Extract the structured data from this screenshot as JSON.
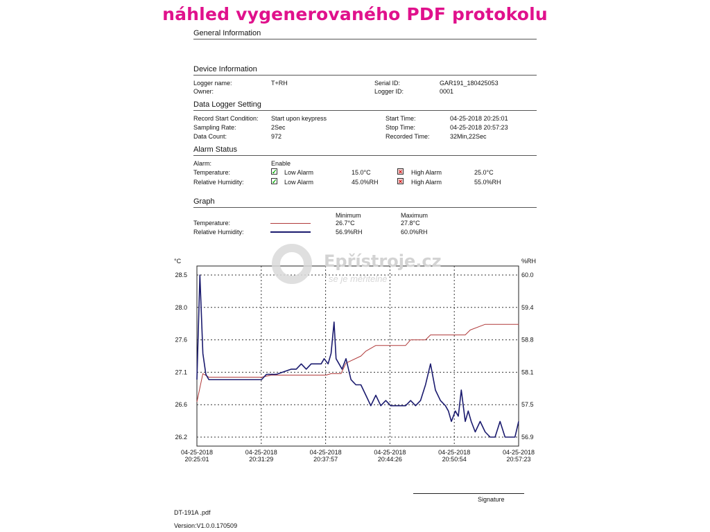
{
  "banner": "náhled vygenerovaného PDF protokolu",
  "sections": {
    "general": "General Information",
    "device": "Device Information",
    "logger_setting": "Data Logger Setting",
    "alarm": "Alarm Status",
    "graph": "Graph"
  },
  "device": {
    "logger_name_label": "Logger name:",
    "logger_name": "T+RH",
    "owner_label": "Owner:",
    "serial_label": "Serial ID:",
    "serial": "GAR191_180425053",
    "logger_id_label": "Logger ID:",
    "logger_id": "0001"
  },
  "setting": {
    "start_cond_label": "Record Start Condition:",
    "start_cond": "Start upon keypress",
    "rate_label": "Sampling Rate:",
    "rate": "2Sec",
    "count_label": "Data Count:",
    "count": "972",
    "start_time_label": "Start Time:",
    "start_time": "04-25-2018 20:25:01",
    "stop_time_label": "Stop Time:",
    "stop_time": "04-25-2018 20:57:23",
    "recorded_label": "Recorded Time:",
    "recorded": "32Min,22Sec"
  },
  "alarm": {
    "alarm_label": "Alarm:",
    "alarm_value": "Enable",
    "temp_label": "Temperature:",
    "rh_label": "Relative Humidity:",
    "low_label": "Low Alarm",
    "high_label": "High Alarm",
    "temp_low": "15.0°C",
    "temp_high": "25.0°C",
    "rh_low": "45.0%RH",
    "rh_high": "55.0%RH"
  },
  "legend": {
    "min_header": "Minimum",
    "max_header": "Maximum",
    "temp_label": "Temperature:",
    "rh_label": "Relative Humidity:",
    "temp_min": "26.7°C",
    "temp_max": "27.8°C",
    "rh_min": "56.9%RH",
    "rh_max": "60.0%RH",
    "temp_color": "#b03a3a",
    "rh_color": "#1a1a6e"
  },
  "watermark": {
    "brand": "Epřístroje.cz",
    "tagline": "se je měřitelné"
  },
  "signature_label": "Signature",
  "footer": {
    "file": "DT-191A .pdf",
    "version": "Version:V1.0.0.170509"
  },
  "chart_data": {
    "type": "line",
    "y_left_unit": "°C",
    "y_right_unit": "%RH",
    "y_left_ticks": [
      "28.5",
      "28.0",
      "27.6",
      "27.1",
      "26.6",
      "26.2"
    ],
    "y_right_ticks": [
      "60.0",
      "59.4",
      "58.8",
      "58.1",
      "57.5",
      "56.9"
    ],
    "ylim_left": [
      26.2,
      28.5
    ],
    "ylim_right": [
      56.9,
      60.0
    ],
    "x_ticks": [
      {
        "date": "04-25-2018",
        "time": "20:25:01"
      },
      {
        "date": "04-25-2018",
        "time": "20:31:29"
      },
      {
        "date": "04-25-2018",
        "time": "20:37:57"
      },
      {
        "date": "04-25-2018",
        "time": "20:44:26"
      },
      {
        "date": "04-25-2018",
        "time": "20:50:54"
      },
      {
        "date": "04-25-2018",
        "time": "20:57:23"
      }
    ],
    "xlim_min": [
      0,
      32.37
    ],
    "grid": true,
    "series": [
      {
        "name": "Temperature",
        "axis": "left",
        "color": "#b03a3a",
        "x_min": [
          0,
          0.6,
          1.2,
          3.5,
          6.5,
          7.5,
          13.0,
          13.5,
          14.5,
          15.0,
          16.5,
          17.0,
          18.0,
          19.5,
          21.0,
          21.5,
          23.0,
          23.5,
          27.0,
          27.5,
          29.0,
          32.4
        ],
        "y": [
          26.7,
          27.1,
          27.05,
          27.05,
          27.05,
          27.08,
          27.08,
          27.1,
          27.1,
          27.25,
          27.35,
          27.42,
          27.5,
          27.5,
          27.5,
          27.58,
          27.58,
          27.65,
          27.65,
          27.72,
          27.8,
          27.8
        ]
      },
      {
        "name": "Relative Humidity",
        "axis": "right",
        "color": "#1a1a6e",
        "x_min": [
          0,
          0.3,
          0.6,
          0.9,
          1.2,
          2.0,
          3.0,
          4.0,
          5.0,
          6.5,
          7.0,
          7.5,
          8.0,
          9.5,
          10.0,
          10.5,
          11.0,
          11.5,
          12.0,
          12.5,
          12.8,
          13.2,
          13.5,
          13.8,
          14.0,
          14.3,
          14.6,
          15.0,
          15.5,
          16.0,
          16.5,
          17.0,
          17.5,
          18.0,
          18.5,
          19.0,
          19.5,
          20.0,
          21.0,
          21.5,
          22.0,
          22.5,
          23.0,
          23.5,
          24.0,
          24.5,
          25.0,
          25.3,
          25.6,
          26.0,
          26.3,
          26.6,
          27.0,
          27.3,
          27.6,
          28.0,
          28.5,
          29.0,
          29.5,
          30.0,
          30.5,
          31.0,
          31.5,
          32.0,
          32.37
        ],
        "y": [
          58.0,
          60.0,
          58.5,
          58.1,
          58.0,
          58.0,
          58.0,
          58.0,
          58.0,
          58.0,
          58.1,
          58.1,
          58.1,
          58.2,
          58.2,
          58.3,
          58.2,
          58.3,
          58.3,
          58.3,
          58.4,
          58.3,
          58.5,
          59.1,
          58.4,
          58.3,
          58.2,
          58.4,
          58.0,
          57.9,
          57.9,
          57.7,
          57.5,
          57.7,
          57.5,
          57.6,
          57.5,
          57.5,
          57.5,
          57.6,
          57.5,
          57.6,
          57.9,
          58.3,
          57.8,
          57.6,
          57.5,
          57.4,
          57.2,
          57.4,
          57.3,
          57.8,
          57.2,
          57.4,
          57.2,
          57.0,
          57.2,
          57.0,
          56.9,
          56.9,
          57.2,
          56.9,
          56.9,
          56.9,
          57.2
        ]
      }
    ]
  }
}
